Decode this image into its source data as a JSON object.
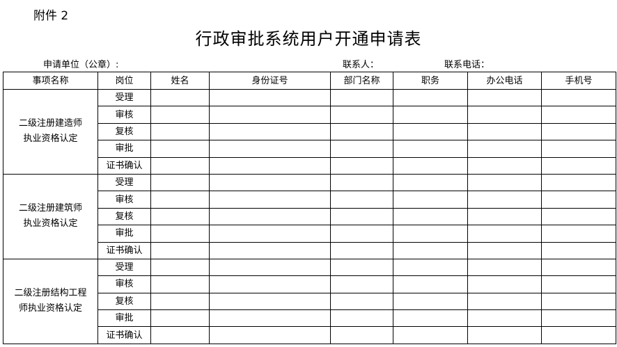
{
  "attachment_label": "附件 2",
  "title": "行政审批系统用户开通申请表",
  "meta": {
    "unit_label": "申请单位（公章）:",
    "contact_label": "联系人：",
    "phone_label": "联系电话："
  },
  "table": {
    "headers": [
      "事项名称",
      "岗位",
      "姓名",
      "身份证号",
      "部门名称",
      "职务",
      "办公电话",
      "手机号"
    ],
    "groups": [
      {
        "item_lines": [
          "二级注册建造师",
          "执业资格认定"
        ],
        "positions": [
          "受理",
          "审核",
          "复核",
          "审批",
          "证书确认"
        ]
      },
      {
        "item_lines": [
          "二级注册建筑师",
          "执业资格认定"
        ],
        "positions": [
          "受理",
          "审核",
          "复核",
          "审批",
          "证书确认"
        ]
      },
      {
        "item_lines": [
          "二级注册结构工程",
          "师执业资格认定"
        ],
        "positions": [
          "受理",
          "审核",
          "复核",
          "审批",
          "证书确认"
        ]
      }
    ]
  }
}
